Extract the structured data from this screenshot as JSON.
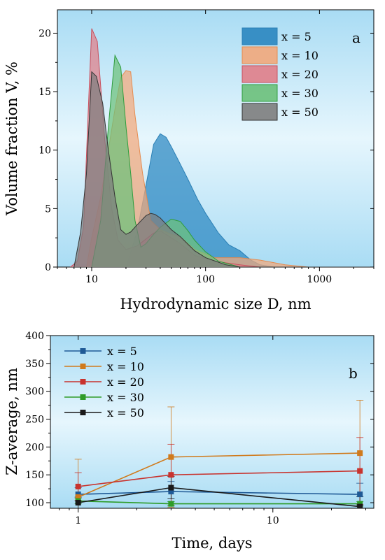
{
  "chart_data": [
    {
      "type": "area",
      "panel_label": "a",
      "xlabel": "Hydrodynamic size D, nm",
      "ylabel": "Volume fraction V, %",
      "x_scale": "log",
      "xlim": [
        5,
        3000
      ],
      "ylim": [
        0,
        22
      ],
      "x_ticks": [
        10,
        100,
        1000
      ],
      "x_tick_labels": [
        "10",
        "100",
        "1000"
      ],
      "y_ticks": [
        0,
        5,
        10,
        15,
        20
      ],
      "y_tick_labels": [
        "0",
        "5",
        "10",
        "15",
        "20"
      ],
      "legend_position": "top-right",
      "background": "#bfe6f7",
      "series": [
        {
          "name": "x =  5",
          "color": "#2a7fb5",
          "fill": "#2a86c0",
          "points": [
            [
              20,
              0
            ],
            [
              25,
              3
            ],
            [
              30,
              7
            ],
            [
              35,
              10.5
            ],
            [
              40,
              11.4
            ],
            [
              45,
              11.1
            ],
            [
              50,
              10.3
            ],
            [
              60,
              8.8
            ],
            [
              70,
              7.5
            ],
            [
              85,
              5.8
            ],
            [
              100,
              4.6
            ],
            [
              130,
              2.9
            ],
            [
              160,
              1.9
            ],
            [
              200,
              1.4
            ],
            [
              250,
              0.6
            ],
            [
              300,
              0.2
            ],
            [
              400,
              0
            ],
            [
              3000,
              0
            ]
          ]
        },
        {
          "name": "x = 10",
          "color": "#e58b4f",
          "fill": "#f2a77a",
          "points": [
            [
              9,
              0
            ],
            [
              10,
              2.5
            ],
            [
              12,
              6
            ],
            [
              14,
              10
            ],
            [
              16,
              13.5
            ],
            [
              18,
              16.2
            ],
            [
              20,
              16.8
            ],
            [
              22,
              16.7
            ],
            [
              24,
              13
            ],
            [
              28,
              8
            ],
            [
              33,
              4
            ],
            [
              40,
              3.2
            ],
            [
              50,
              2.8
            ],
            [
              60,
              2.6
            ],
            [
              80,
              1.5
            ],
            [
              120,
              0.8
            ],
            [
              200,
              0.8
            ],
            [
              300,
              0.6
            ],
            [
              500,
              0.2
            ],
            [
              800,
              0
            ],
            [
              3000,
              0
            ]
          ]
        },
        {
          "name": "x = 20",
          "color": "#c8505e",
          "fill": "#e07e88",
          "points": [
            [
              6.5,
              0
            ],
            [
              7.5,
              0.5
            ],
            [
              8.5,
              3.5
            ],
            [
              9.3,
              13
            ],
            [
              10,
              20.4
            ],
            [
              11.2,
              19.3
            ],
            [
              13,
              11
            ],
            [
              15,
              5
            ],
            [
              17,
              2.3
            ],
            [
              20,
              1.5
            ],
            [
              25,
              1.8
            ],
            [
              30,
              2.4
            ],
            [
              35,
              2.9
            ],
            [
              40,
              3.1
            ],
            [
              50,
              2.5
            ],
            [
              60,
              2
            ],
            [
              80,
              1
            ],
            [
              120,
              0.5
            ],
            [
              200,
              0.2
            ],
            [
              300,
              0
            ],
            [
              3000,
              0
            ]
          ]
        },
        {
          "name": "x = 30",
          "color": "#2e9c3e",
          "fill": "#6cc07a",
          "points": [
            [
              10,
              0
            ],
            [
              12,
              4
            ],
            [
              14,
              12
            ],
            [
              16,
              18.1
            ],
            [
              18,
              17.1
            ],
            [
              20,
              12
            ],
            [
              22,
              8
            ],
            [
              24,
              4
            ],
            [
              27,
              1.7
            ],
            [
              30,
              2
            ],
            [
              35,
              2.8
            ],
            [
              40,
              3.4
            ],
            [
              50,
              4.1
            ],
            [
              55,
              4
            ],
            [
              60,
              3.9
            ],
            [
              70,
              3.1
            ],
            [
              80,
              2.3
            ],
            [
              100,
              1.3
            ],
            [
              130,
              0.5
            ],
            [
              200,
              0
            ],
            [
              3000,
              0
            ]
          ]
        },
        {
          "name": "x = 50",
          "color": "#333333",
          "fill": "#7d7d7d",
          "points": [
            [
              7,
              0
            ],
            [
              8,
              3
            ],
            [
              9,
              8
            ],
            [
              10,
              16.7
            ],
            [
              11,
              16.3
            ],
            [
              12.5,
              14
            ],
            [
              14,
              10
            ],
            [
              16,
              6
            ],
            [
              18,
              3.2
            ],
            [
              20,
              2.8
            ],
            [
              22,
              3
            ],
            [
              25,
              3.6
            ],
            [
              30,
              4.4
            ],
            [
              33,
              4.6
            ],
            [
              36,
              4.5
            ],
            [
              40,
              4.2
            ],
            [
              50,
              3.2
            ],
            [
              60,
              2.6
            ],
            [
              80,
              1.4
            ],
            [
              100,
              0.8
            ],
            [
              150,
              0.2
            ],
            [
              200,
              0
            ],
            [
              3000,
              0
            ]
          ]
        }
      ]
    },
    {
      "type": "line",
      "panel_label": "b",
      "xlabel": "Time, days",
      "ylabel": "Z-average, nm",
      "x_scale": "log",
      "xlim": [
        0.72,
        33
      ],
      "ylim": [
        90,
        400
      ],
      "x_ticks": [
        1,
        10
      ],
      "x_tick_labels": [
        "1",
        "10"
      ],
      "y_ticks": [
        100,
        150,
        200,
        250,
        300,
        350,
        400
      ],
      "y_tick_labels": [
        "100",
        "150",
        "200",
        "250",
        "300",
        "350",
        "400"
      ],
      "legend_position": "top-left",
      "x": [
        1,
        3,
        28
      ],
      "series": [
        {
          "name": "x =  5",
          "color": "#1f5a96",
          "values": [
            115,
            120,
            115
          ],
          "errors": [
            12,
            18,
            20
          ]
        },
        {
          "name": "x = 10",
          "color": "#d07a1c",
          "values": [
            110,
            182,
            189
          ],
          "errors": [
            68,
            90,
            95
          ]
        },
        {
          "name": "x = 20",
          "color": "#c8332e",
          "values": [
            129,
            150,
            157
          ],
          "errors": [
            25,
            55,
            60
          ]
        },
        {
          "name": "x = 30",
          "color": "#2e9c28",
          "values": [
            103,
            98,
            98
          ],
          "errors": [
            5,
            4,
            4
          ]
        },
        {
          "name": "x = 50",
          "color": "#1a1a1a",
          "values": [
            100,
            127,
            93
          ],
          "errors": [
            10,
            20,
            18
          ]
        }
      ]
    }
  ]
}
